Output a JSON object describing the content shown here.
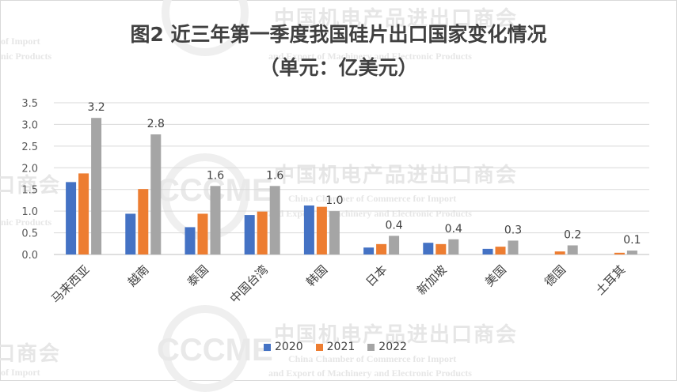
{
  "watermark": {
    "cn": "中国机电产品进出口商会",
    "cn_partial": "口商会",
    "en1": "China Chamber of Commerce for Import",
    "en2": "and Export of Machinery and Electronic Products",
    "en1_partial": "of Import",
    "en2_partial": "nic Products",
    "logo": "CCCME"
  },
  "chart_data": {
    "type": "bar",
    "title": "图2 近三年第一季度我国硅片出口国家变化情况",
    "subtitle": "（单元：亿美元）",
    "categories": [
      "马来西亚",
      "越南",
      "泰国",
      "中国台湾",
      "韩国",
      "日本",
      "新加坡",
      "美国",
      "德国",
      "土耳其"
    ],
    "series": [
      {
        "name": "2020",
        "color": "#4472c4",
        "values": [
          1.67,
          0.94,
          0.63,
          0.91,
          1.13,
          0.16,
          0.27,
          0.13,
          0.0,
          0.0
        ]
      },
      {
        "name": "2021",
        "color": "#ed7d31",
        "values": [
          1.87,
          1.51,
          0.94,
          0.99,
          1.1,
          0.24,
          0.24,
          0.18,
          0.07,
          0.04
        ]
      },
      {
        "name": "2022",
        "color": "#a5a5a5",
        "values": [
          3.15,
          2.77,
          1.58,
          1.58,
          1.0,
          0.43,
          0.35,
          0.32,
          0.21,
          0.09
        ]
      }
    ],
    "data_labels": [
      "3.2",
      "2.8",
      "1.6",
      "1.6",
      "1.0",
      "0.4",
      "0.4",
      "0.3",
      "0.2",
      "0.1"
    ],
    "ylim": [
      0,
      3.5
    ],
    "yticks": [
      "0.0",
      "0.5",
      "1.0",
      "1.5",
      "2.0",
      "2.5",
      "3.0",
      "3.5"
    ],
    "grid": true,
    "legend_position": "bottom"
  }
}
